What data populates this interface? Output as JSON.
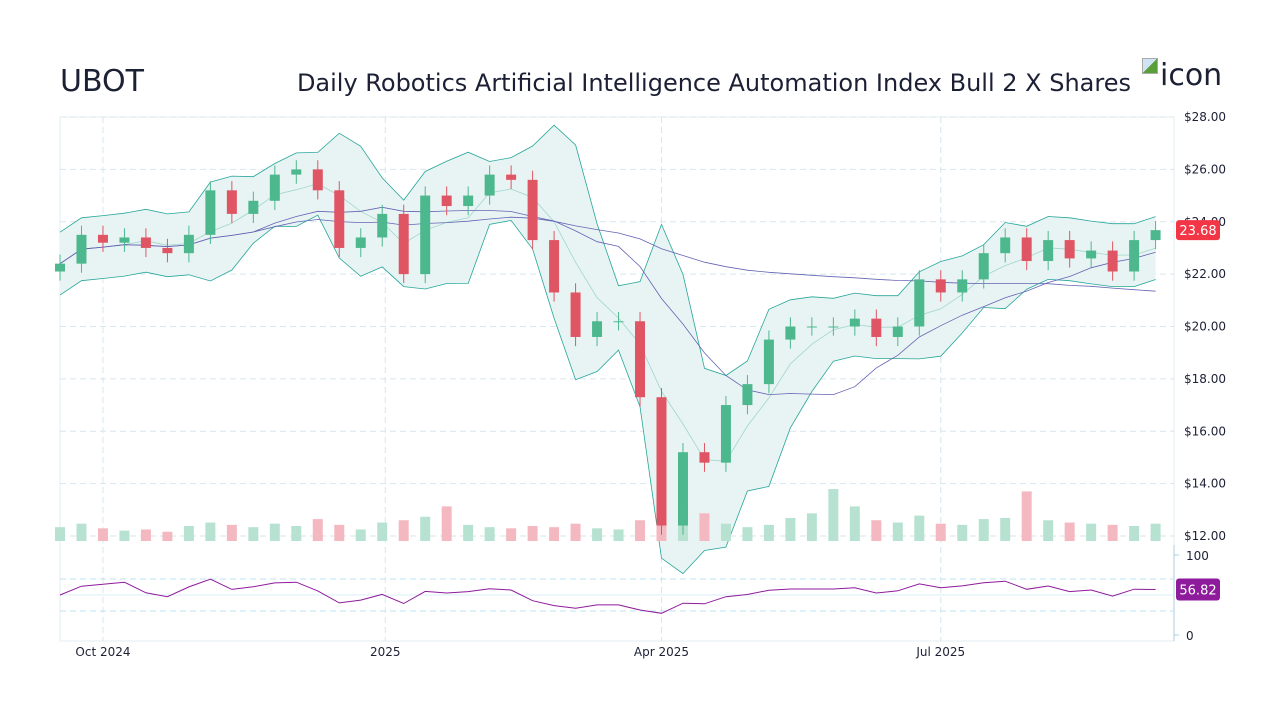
{
  "header": {
    "ticker": "UBOT",
    "title": "Daily Robotics Artificial Intelligence Automation Index Bull 2 X Shares",
    "icon_alt": "icon"
  },
  "colors": {
    "up": "#4db88e",
    "down": "#e05563",
    "band_line": "#26a69a",
    "band_fill": "#e8f4f3",
    "ma": "#6464b4",
    "rsi": "#8e1a9c",
    "last_price_label": "#f23645",
    "rsi_label": "#8e1a9c",
    "grid": "#d6e6ee"
  },
  "chart_data": {
    "type": "candlestick",
    "title": "",
    "price_axis": {
      "ylim": [
        12,
        28
      ],
      "ticks": [
        "$12.00",
        "$14.00",
        "$16.00",
        "$18.00",
        "$20.00",
        "$22.00",
        "$24.00",
        "$26.00",
        "$28.00"
      ],
      "tick_values": [
        12,
        14,
        16,
        18,
        20,
        22,
        24,
        26,
        28
      ]
    },
    "time_axis": {
      "xlim": [
        "2024-09-17",
        "2025-09-15"
      ],
      "ticks": [
        {
          "label": "Oct 2024",
          "date": "2024-10-01"
        },
        {
          "label": "2025",
          "date": "2025-01-01"
        },
        {
          "label": "Apr 2025",
          "date": "2025-04-01"
        },
        {
          "label": "Jul 2025",
          "date": "2025-07-01"
        }
      ]
    },
    "grid": true,
    "last_price": "23.68",
    "candles": {
      "dates": [
        "2024-09-17",
        "2024-09-24",
        "2024-10-01",
        "2024-10-08",
        "2024-10-15",
        "2024-10-22",
        "2024-10-29",
        "2024-11-05",
        "2024-11-12",
        "2024-11-19",
        "2024-11-26",
        "2024-12-03",
        "2024-12-10",
        "2024-12-17",
        "2024-12-24",
        "2024-12-31",
        "2025-01-07",
        "2025-01-14",
        "2025-01-21",
        "2025-01-28",
        "2025-02-04",
        "2025-02-11",
        "2025-02-18",
        "2025-02-25",
        "2025-03-04",
        "2025-03-11",
        "2025-03-18",
        "2025-03-25",
        "2025-04-01",
        "2025-04-08",
        "2025-04-15",
        "2025-04-22",
        "2025-04-29",
        "2025-05-06",
        "2025-05-13",
        "2025-05-20",
        "2025-05-27",
        "2025-06-03",
        "2025-06-10",
        "2025-06-17",
        "2025-06-24",
        "2025-07-01",
        "2025-07-08",
        "2025-07-15",
        "2025-07-22",
        "2025-07-29",
        "2025-08-05",
        "2025-08-12",
        "2025-08-19",
        "2025-08-26",
        "2025-09-02",
        "2025-09-09"
      ],
      "close": [
        22.4,
        23.5,
        23.2,
        23.4,
        23.0,
        22.8,
        23.5,
        25.2,
        24.3,
        24.8,
        25.8,
        26.0,
        25.2,
        23.0,
        23.4,
        24.3,
        22.0,
        25.0,
        24.6,
        25.0,
        25.8,
        25.6,
        23.3,
        21.3,
        19.6,
        20.2,
        20.2,
        17.3,
        12.4,
        15.2,
        14.8,
        17.0,
        17.8,
        19.5,
        20.0,
        20.0,
        20.0,
        20.3,
        19.6,
        20.0,
        21.8,
        21.3,
        21.8,
        22.8,
        23.4,
        22.5,
        23.3,
        22.6,
        22.9,
        22.1,
        23.3,
        23.68
      ],
      "volume": [
        1.2,
        1.5,
        1.1,
        0.9,
        1.0,
        0.8,
        1.3,
        1.6,
        1.4,
        1.2,
        1.5,
        1.3,
        1.9,
        1.4,
        1.0,
        1.6,
        1.8,
        2.1,
        3.0,
        1.4,
        1.2,
        1.1,
        1.3,
        1.2,
        1.5,
        1.1,
        1.0,
        1.8,
        6.5,
        3.5,
        2.4,
        1.5,
        1.2,
        1.4,
        2.0,
        2.4,
        4.5,
        3.0,
        1.8,
        1.6,
        2.2,
        1.5,
        1.4,
        1.9,
        2.0,
        4.3,
        1.8,
        1.6,
        1.5,
        1.4,
        1.3,
        1.5
      ]
    },
    "overlays": [
      "Bollinger Bands (20, 2)",
      "SMA 50",
      "SMA 200"
    ],
    "rsi": {
      "ylim": [
        0,
        100
      ],
      "ticks": [
        "0",
        "100"
      ],
      "levels": [
        30,
        70
      ],
      "last_value": "56.82"
    }
  }
}
